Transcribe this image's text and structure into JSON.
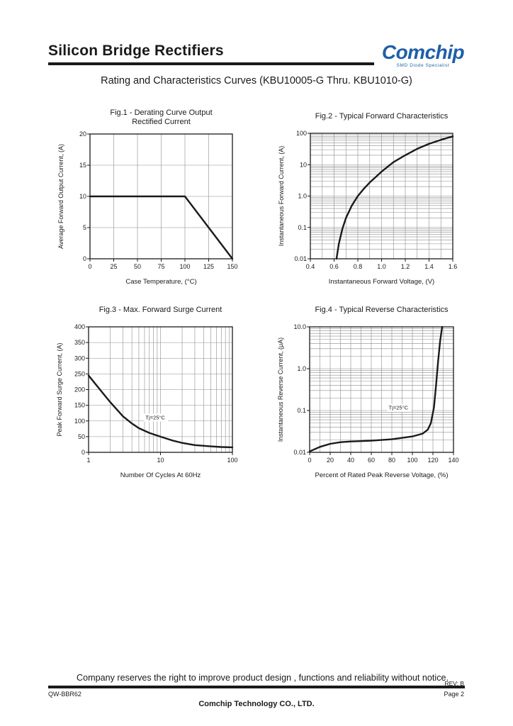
{
  "header": {
    "title": "Silicon Bridge Rectifiers",
    "logo_name": "Comchip",
    "logo_tagline": "SMD Diode Specialist",
    "logo_color": "#1f5fa8"
  },
  "subtitle": "Rating and Characteristics Curves (KBU10005-G Thru. KBU1010-G)",
  "footer": {
    "notice": "Company reserves the right to improve product design , functions and reliability without notice.",
    "rev": "REV: B",
    "doc_code": "QW-BBR62",
    "page": "Page 2",
    "company": "Comchip Technology CO., LTD."
  },
  "chart_data": [
    {
      "id": "fig1",
      "type": "line",
      "title": "Fig.1 - Derating Curve Output",
      "title2": "Rectified Current",
      "xlabel": "Case Temperature, (°C)",
      "ylabel": "Average Forward Output Current, (A)",
      "xscale": "linear",
      "yscale": "linear",
      "xlim": [
        0,
        150
      ],
      "ylim": [
        0,
        20
      ],
      "xticks": [
        0,
        25,
        50,
        75,
        100,
        125,
        150
      ],
      "xtick_labels": [
        "0",
        "25",
        "50",
        "75",
        "100",
        "125",
        "150"
      ],
      "yticks": [
        0,
        5,
        10,
        15,
        20
      ],
      "ytick_labels": [
        "0",
        "5",
        "10",
        "15",
        "20"
      ],
      "xgrid": [
        25,
        50,
        75,
        100,
        125
      ],
      "ygrid": [
        5,
        10,
        15
      ],
      "series": [
        {
          "name": "Derating",
          "x": [
            0,
            100,
            150
          ],
          "y": [
            10,
            10,
            0
          ]
        }
      ]
    },
    {
      "id": "fig2",
      "type": "line",
      "title": "Fig.2 - Typical Forward Characteristics",
      "xlabel": "Instantaneous Forward Voltage, (V)",
      "ylabel": "Instantaneous Forward Current, (A)",
      "xscale": "linear",
      "yscale": "log",
      "xlim": [
        0.4,
        1.6
      ],
      "ylim": [
        0.01,
        100
      ],
      "xticks": [
        0.4,
        0.6,
        0.8,
        1.0,
        1.2,
        1.4,
        1.6
      ],
      "xtick_labels": [
        "0.4",
        "0.6",
        "0.8",
        "1.0",
        "1.2",
        "1.4",
        "1.6"
      ],
      "yticks": [
        0.01,
        0.1,
        1,
        10,
        100
      ],
      "ytick_labels": [
        "0.01",
        "0.1",
        "1.0",
        "10",
        "100"
      ],
      "xgrid": [
        0.5,
        0.6,
        0.7,
        0.8,
        0.9,
        1.0,
        1.1,
        1.2,
        1.3,
        1.4,
        1.5
      ],
      "ygrid_log": true,
      "series": [
        {
          "name": "Forward",
          "x": [
            0.62,
            0.64,
            0.67,
            0.7,
            0.75,
            0.8,
            0.85,
            0.9,
            1.0,
            1.1,
            1.2,
            1.3,
            1.4,
            1.5,
            1.6
          ],
          "y": [
            0.01,
            0.03,
            0.09,
            0.2,
            0.5,
            1.0,
            1.7,
            2.7,
            6.0,
            12,
            20,
            32,
            46,
            62,
            80
          ]
        }
      ]
    },
    {
      "id": "fig3",
      "type": "line",
      "title": "Fig.3 - Max. Forward Surge Current",
      "xlabel": "Number Of Cycles At 60Hz",
      "ylabel": "Peak Forward Surge Current, (A)",
      "annotation": "Tj=25°C",
      "annotation_at": [
        6.2,
        105
      ],
      "xscale": "log",
      "yscale": "linear",
      "xlim": [
        1,
        100
      ],
      "ylim": [
        0,
        400
      ],
      "xticks": [
        1,
        10,
        100
      ],
      "xtick_labels": [
        "1",
        "10",
        "100"
      ],
      "yticks": [
        0,
        50,
        100,
        150,
        200,
        250,
        300,
        350,
        400
      ],
      "ytick_labels": [
        "0",
        "50",
        "100",
        "150",
        "200",
        "250",
        "300",
        "350",
        "400"
      ],
      "xgrid_log": true,
      "ygrid": [
        50,
        100,
        150,
        200,
        250,
        300,
        350
      ],
      "series": [
        {
          "name": "Surge",
          "x": [
            1,
            1.5,
            2,
            3,
            4,
            5,
            7,
            10,
            15,
            20,
            30,
            50,
            70,
            100
          ],
          "y": [
            245,
            195,
            160,
            115,
            92,
            77,
            62,
            50,
            37,
            30,
            23,
            19,
            17,
            16
          ]
        }
      ]
    },
    {
      "id": "fig4",
      "type": "line",
      "title": "Fig.4 - Typical Reverse Characteristics",
      "xlabel": "Percent of Rated Peak Reverse Voltage, (%)",
      "ylabel": "Instantaneous Reverse Current, (μA)",
      "annotation": "Tj=25°C",
      "annotation_at": [
        77,
        0.105
      ],
      "xscale": "linear",
      "yscale": "log",
      "xlim": [
        0,
        140
      ],
      "ylim": [
        0.01,
        10
      ],
      "xticks": [
        0,
        20,
        40,
        60,
        80,
        100,
        120,
        140
      ],
      "xtick_labels": [
        "0",
        "20",
        "40",
        "60",
        "80",
        "100",
        "120",
        "140"
      ],
      "yticks": [
        0.01,
        0.1,
        1,
        10
      ],
      "ytick_labels": [
        "0.01",
        "0.1",
        "1.0",
        "10.0"
      ],
      "xgrid": [
        10,
        20,
        30,
        40,
        50,
        60,
        70,
        80,
        90,
        100,
        110,
        120,
        130
      ],
      "ygrid_log": true,
      "series": [
        {
          "name": "Reverse",
          "x": [
            0,
            10,
            20,
            30,
            40,
            60,
            80,
            100,
            110,
            115,
            118,
            121,
            123,
            125,
            127,
            129
          ],
          "y": [
            0.0105,
            0.0135,
            0.016,
            0.0175,
            0.0182,
            0.019,
            0.0205,
            0.024,
            0.028,
            0.035,
            0.05,
            0.12,
            0.4,
            1.5,
            4.5,
            10
          ]
        }
      ]
    }
  ]
}
